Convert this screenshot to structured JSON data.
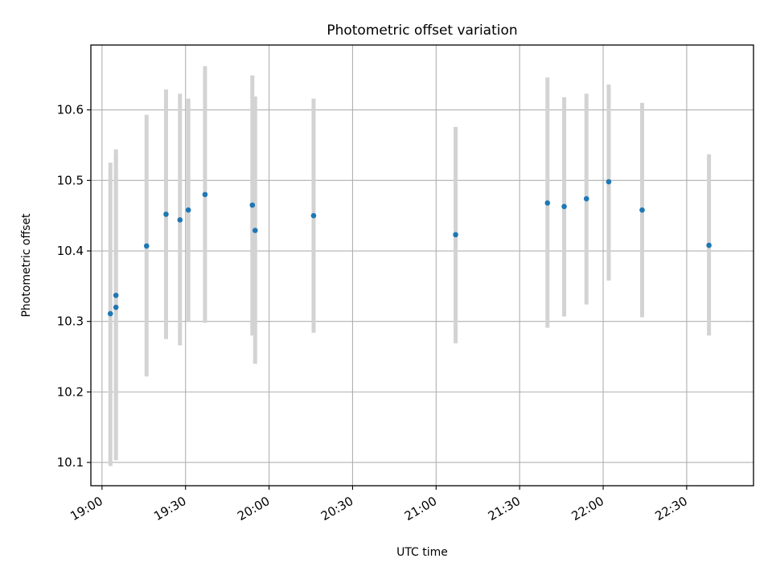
{
  "chart_data": {
    "type": "scatter",
    "title": "Photometric offset variation",
    "xlabel": "UTC time",
    "ylabel": "Photometric offset",
    "x_axis_type": "time",
    "xlim": [
      "18:56",
      "22:54"
    ],
    "ylim": [
      10.067,
      10.692
    ],
    "xticks": [
      "19:00",
      "19:30",
      "20:00",
      "20:30",
      "21:00",
      "21:30",
      "22:00",
      "22:30"
    ],
    "yticks": [
      "10.1",
      "10.2",
      "10.3",
      "10.4",
      "10.5",
      "10.6"
    ],
    "grid": true,
    "legend": "none",
    "marker_color": "#1f77b4",
    "errorbar_color": "#d3d3d3",
    "points": [
      {
        "x": "19:03",
        "y": 10.311,
        "ylow": 10.095,
        "yhigh": 10.525
      },
      {
        "x": "19:05",
        "y": 10.32,
        "ylow": 10.103,
        "yhigh": 10.537
      },
      {
        "x": "19:05",
        "y": 10.337,
        "ylow": 10.131,
        "yhigh": 10.544
      },
      {
        "x": "19:16",
        "y": 10.407,
        "ylow": 10.222,
        "yhigh": 10.593
      },
      {
        "x": "19:23",
        "y": 10.452,
        "ylow": 10.275,
        "yhigh": 10.629
      },
      {
        "x": "19:28",
        "y": 10.444,
        "ylow": 10.266,
        "yhigh": 10.623
      },
      {
        "x": "19:31",
        "y": 10.458,
        "ylow": 10.3,
        "yhigh": 10.616
      },
      {
        "x": "19:37",
        "y": 10.48,
        "ylow": 10.298,
        "yhigh": 10.662
      },
      {
        "x": "19:54",
        "y": 10.465,
        "ylow": 10.28,
        "yhigh": 10.649
      },
      {
        "x": "19:55",
        "y": 10.429,
        "ylow": 10.24,
        "yhigh": 10.619
      },
      {
        "x": "20:16",
        "y": 10.45,
        "ylow": 10.284,
        "yhigh": 10.616
      },
      {
        "x": "21:07",
        "y": 10.423,
        "ylow": 10.269,
        "yhigh": 10.576
      },
      {
        "x": "21:40",
        "y": 10.468,
        "ylow": 10.291,
        "yhigh": 10.646
      },
      {
        "x": "21:46",
        "y": 10.463,
        "ylow": 10.307,
        "yhigh": 10.618
      },
      {
        "x": "21:54",
        "y": 10.474,
        "ylow": 10.324,
        "yhigh": 10.623
      },
      {
        "x": "22:02",
        "y": 10.498,
        "ylow": 10.358,
        "yhigh": 10.636
      },
      {
        "x": "22:14",
        "y": 10.458,
        "ylow": 10.306,
        "yhigh": 10.61
      },
      {
        "x": "22:38",
        "y": 10.408,
        "ylow": 10.28,
        "yhigh": 10.537
      }
    ]
  }
}
